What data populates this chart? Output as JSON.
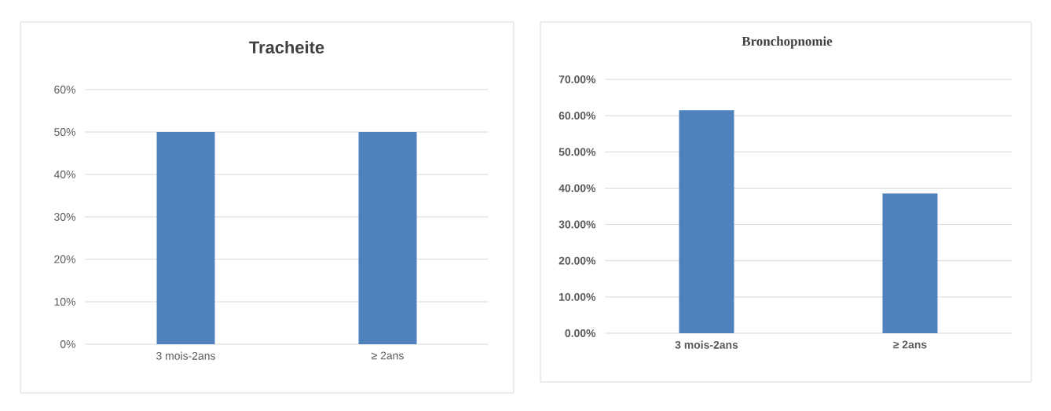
{
  "chart_data": [
    {
      "type": "bar",
      "title": "Tracheite",
      "categories": [
        "3 mois-2ans",
        "≥ 2ans"
      ],
      "values": [
        50,
        50
      ],
      "color": "#4f81bd",
      "ylim": [
        0,
        60
      ],
      "yticks": [
        {
          "value": 0,
          "label": "0%"
        },
        {
          "value": 10,
          "label": "10%"
        },
        {
          "value": 20,
          "label": "20%"
        },
        {
          "value": 30,
          "label": "30%"
        },
        {
          "value": 40,
          "label": "40%"
        },
        {
          "value": 50,
          "label": "50%"
        },
        {
          "value": 60,
          "label": "60%"
        }
      ],
      "grid": "y"
    },
    {
      "type": "bar",
      "title": "Bronchopnomie",
      "categories": [
        "3 mois-2ans",
        "≥ 2ans"
      ],
      "values": [
        61.5,
        38.5
      ],
      "color": "#4f81bd",
      "ylim": [
        0,
        70
      ],
      "yticks": [
        {
          "value": 0,
          "label": "0.00%"
        },
        {
          "value": 10,
          "label": "10.00%"
        },
        {
          "value": 20,
          "label": "20.00%"
        },
        {
          "value": 30,
          "label": "30.00%"
        },
        {
          "value": 40,
          "label": "40.00%"
        },
        {
          "value": 50,
          "label": "50.00%"
        },
        {
          "value": 60,
          "label": "60.00%"
        },
        {
          "value": 70,
          "label": "70.00%"
        }
      ],
      "grid": "y"
    }
  ]
}
